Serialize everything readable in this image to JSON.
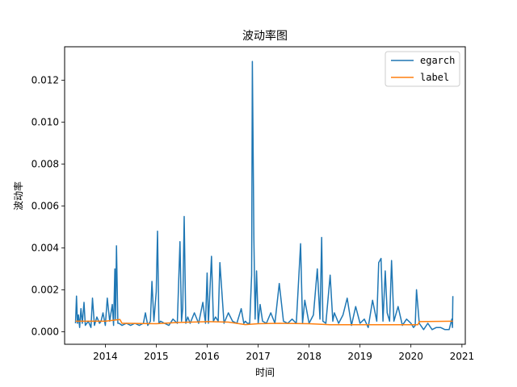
{
  "chart_data": {
    "type": "line",
    "title": "波动率图",
    "xlabel": "时间",
    "ylabel": "波动率",
    "xlim": [
      "2013-03-15",
      "2021-01-25"
    ],
    "ylim": [
      -0.0006,
      0.0136
    ],
    "x_ticks": [
      "2014",
      "2015",
      "2016",
      "2017",
      "2018",
      "2019",
      "2020",
      "2021"
    ],
    "y_ticks": [
      "0.000",
      "0.002",
      "0.004",
      "0.006",
      "0.008",
      "0.010",
      "0.012"
    ],
    "grid": false,
    "legend_position": "top-right",
    "colors": {
      "egarch": "#1f77b4",
      "label": "#ff7f0e"
    },
    "series": [
      {
        "name": "egarch",
        "color": "#1f77b4",
        "x": [
          "2013-06-01",
          "2013-06-08",
          "2013-06-15",
          "2013-06-22",
          "2013-07-01",
          "2013-07-10",
          "2013-07-20",
          "2013-08-01",
          "2013-08-10",
          "2013-09-01",
          "2013-09-20",
          "2013-10-01",
          "2013-10-15",
          "2013-11-01",
          "2013-11-20",
          "2013-12-01",
          "2013-12-15",
          "2014-01-01",
          "2014-01-15",
          "2014-02-01",
          "2014-02-20",
          "2014-03-01",
          "2014-03-10",
          "2014-03-15",
          "2014-03-22",
          "2014-04-01",
          "2014-04-10",
          "2014-05-01",
          "2014-06-01",
          "2014-07-01",
          "2014-08-01",
          "2014-09-01",
          "2014-10-01",
          "2014-10-15",
          "2014-11-01",
          "2014-11-20",
          "2014-12-01",
          "2014-12-15",
          "2015-01-01",
          "2015-01-10",
          "2015-01-20",
          "2015-02-01",
          "2015-03-01",
          "2015-04-01",
          "2015-05-01",
          "2015-06-01",
          "2015-06-20",
          "2015-07-01",
          "2015-07-10",
          "2015-07-20",
          "2015-08-01",
          "2015-08-15",
          "2015-09-01",
          "2015-10-01",
          "2015-11-01",
          "2015-12-01",
          "2015-12-20",
          "2016-01-01",
          "2016-01-10",
          "2016-02-01",
          "2016-02-15",
          "2016-03-01",
          "2016-03-20",
          "2016-04-01",
          "2016-05-01",
          "2016-06-01",
          "2016-07-01",
          "2016-08-01",
          "2016-09-01",
          "2016-09-20",
          "2016-10-01",
          "2016-10-15",
          "2016-11-01",
          "2016-11-15",
          "2016-11-20",
          "2016-12-01",
          "2016-12-10",
          "2016-12-20",
          "2017-01-01",
          "2017-01-15",
          "2017-02-01",
          "2017-03-01",
          "2017-04-01",
          "2017-05-01",
          "2017-06-01",
          "2017-07-01",
          "2017-08-01",
          "2017-09-01",
          "2017-10-01",
          "2017-11-01",
          "2017-11-15",
          "2017-12-01",
          "2018-01-01",
          "2018-02-01",
          "2018-03-01",
          "2018-03-20",
          "2018-04-01",
          "2018-04-10",
          "2018-05-01",
          "2018-06-01",
          "2018-06-20",
          "2018-07-01",
          "2018-08-01",
          "2018-09-01",
          "2018-10-01",
          "2018-11-01",
          "2018-12-01",
          "2019-01-01",
          "2019-02-01",
          "2019-03-01",
          "2019-04-01",
          "2019-05-01",
          "2019-05-15",
          "2019-06-01",
          "2019-06-15",
          "2019-07-01",
          "2019-07-15",
          "2019-08-01",
          "2019-08-15",
          "2019-09-01",
          "2019-10-01",
          "2019-11-01",
          "2019-12-01",
          "2020-01-01",
          "2020-01-20",
          "2020-02-01",
          "2020-02-10",
          "2020-03-01",
          "2020-04-01",
          "2020-05-01",
          "2020-06-01",
          "2020-07-01",
          "2020-08-01",
          "2020-09-01",
          "2020-10-01",
          "2020-10-20",
          "2020-10-25",
          "2020-10-28"
        ],
        "values": [
          0.0004,
          0.0017,
          0.0004,
          0.0008,
          0.0002,
          0.0011,
          0.0004,
          0.0014,
          0.0003,
          0.0005,
          0.0002,
          0.0016,
          0.0003,
          0.0007,
          0.0004,
          0.0005,
          0.0009,
          0.0003,
          0.0016,
          0.0005,
          0.0013,
          0.0003,
          0.003,
          0.0006,
          0.0041,
          0.0004,
          0.0004,
          0.0003,
          0.0004,
          0.0003,
          0.0004,
          0.0003,
          0.0004,
          0.0009,
          0.0003,
          0.0005,
          0.0024,
          0.0005,
          0.0019,
          0.0048,
          0.0004,
          0.0005,
          0.0004,
          0.0003,
          0.0006,
          0.0004,
          0.0043,
          0.0005,
          0.0011,
          0.0055,
          0.0004,
          0.0007,
          0.0004,
          0.0009,
          0.0004,
          0.0014,
          0.0004,
          0.0028,
          0.0004,
          0.0036,
          0.0005,
          0.0007,
          0.0005,
          0.0033,
          0.0004,
          0.0009,
          0.0005,
          0.0004,
          0.0011,
          0.0004,
          0.0005,
          0.0004,
          0.0004,
          0.0027,
          0.0129,
          0.0044,
          0.0006,
          0.0029,
          0.0004,
          0.0013,
          0.0005,
          0.0004,
          0.0009,
          0.0004,
          0.0023,
          0.0005,
          0.0004,
          0.0006,
          0.0004,
          0.0042,
          0.0004,
          0.0015,
          0.0004,
          0.0008,
          0.003,
          0.0006,
          0.0045,
          0.0005,
          0.0004,
          0.0027,
          0.0005,
          0.0009,
          0.0004,
          0.0008,
          0.0016,
          0.0003,
          0.0012,
          0.0004,
          0.0006,
          0.0002,
          0.0015,
          0.0005,
          0.0033,
          0.0035,
          0.0005,
          0.0029,
          0.0009,
          0.0005,
          0.0034,
          0.0005,
          0.0012,
          0.0003,
          0.0006,
          0.0004,
          0.0002,
          0.0003,
          0.002,
          0.0004,
          0.0001,
          0.0004,
          0.0001,
          0.0002,
          0.0002,
          0.0001,
          0.0001,
          0.0006,
          0.0002,
          0.0017
        ]
      },
      {
        "name": "label",
        "color": "#ff7f0e",
        "x": [
          "2013-06-01",
          "2014-01-01",
          "2014-04-15",
          "2014-05-01",
          "2014-06-01",
          "2015-01-01",
          "2015-06-01",
          "2016-01-01",
          "2016-06-01",
          "2016-10-01",
          "2017-01-01",
          "2017-06-01",
          "2018-01-01",
          "2018-06-01",
          "2019-01-01",
          "2019-06-01",
          "2020-01-01",
          "2020-02-20",
          "2020-03-01",
          "2020-10-28"
        ],
        "values": [
          0.0005,
          0.0005,
          0.00058,
          0.0004,
          0.0004,
          0.00038,
          0.00044,
          0.00048,
          0.00046,
          0.00034,
          0.00038,
          0.0004,
          0.00038,
          0.00033,
          0.00033,
          0.00033,
          0.00033,
          0.00033,
          0.00048,
          0.0005
        ]
      }
    ]
  }
}
